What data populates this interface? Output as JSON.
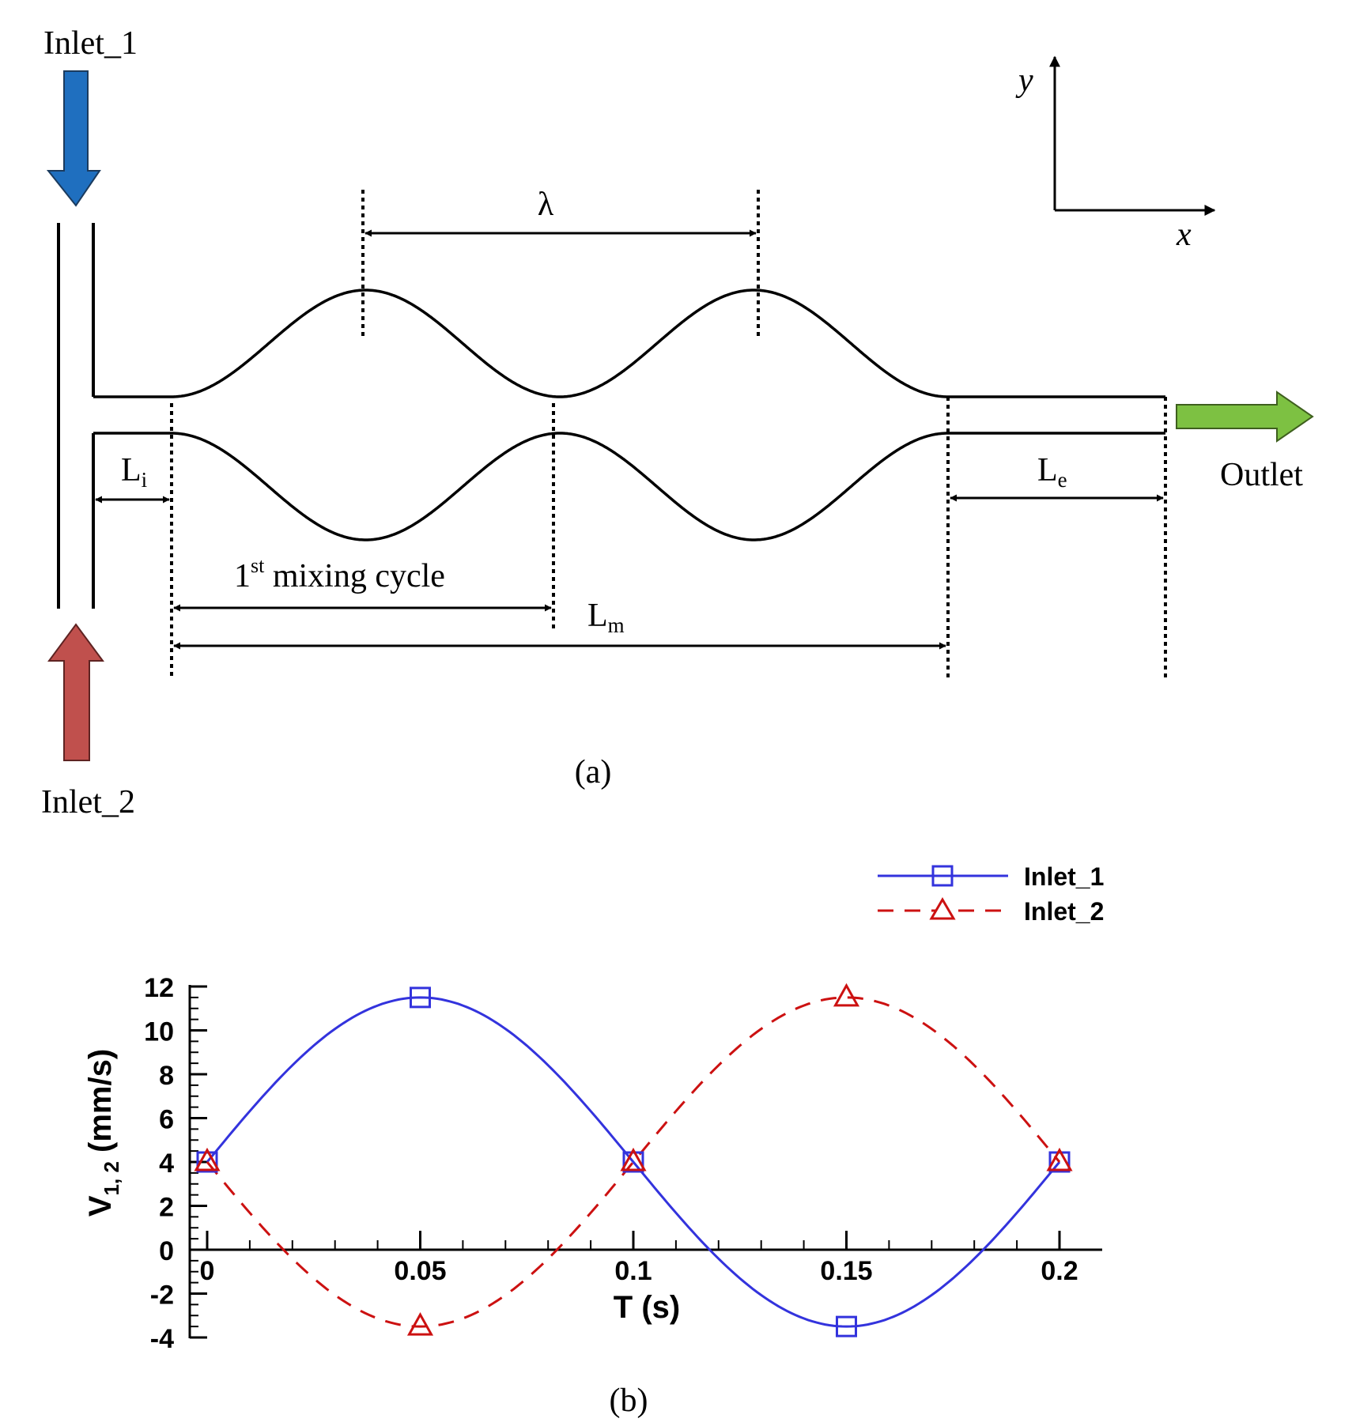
{
  "diagram": {
    "inlet_1": "Inlet_1",
    "inlet_2": "Inlet_2",
    "outlet": "Outlet",
    "lambda": "λ",
    "li_main": "L",
    "li_sub": "i",
    "le_main": "L",
    "le_sub": "e",
    "lm_main": "L",
    "lm_sub": "m",
    "cycle_num": "1",
    "cycle_sup": "st",
    "cycle_text": " mixing cycle",
    "axis_x": "x",
    "axis_y": "y",
    "caption_a": "(a)",
    "caption_b": "(b)",
    "colors": {
      "inlet_1_arrow": "#1f6fbf",
      "inlet_2_arrow": "#c0504d",
      "outlet_arrow": "#7dc142"
    }
  },
  "chart_data": {
    "type": "line",
    "xlabel": "T (s)",
    "ylabel_main": "V",
    "ylabel_sub": "1, 2",
    "ylabel_unit": " (mm/s)",
    "xlim": [
      0,
      0.2
    ],
    "ylim": [
      -4,
      12
    ],
    "x_ticks": [
      0,
      0.05,
      0.1,
      0.15,
      0.2
    ],
    "x_tick_labels": [
      "0",
      "0.05",
      "0.1",
      "0.15",
      "0.2"
    ],
    "y_ticks": [
      -4,
      -2,
      0,
      2,
      4,
      6,
      8,
      10,
      12
    ],
    "y_tick_labels": [
      "-4",
      "-2",
      "0",
      "2",
      "4",
      "6",
      "8",
      "10",
      "12"
    ],
    "legend_position": "top-right",
    "series": [
      {
        "name": "Inlet_1",
        "color": "#3333dd",
        "style": "solid",
        "marker": "square",
        "x": [
          0,
          0.05,
          0.1,
          0.15,
          0.2
        ],
        "y": [
          4,
          11.5,
          4,
          -3.5,
          4
        ]
      },
      {
        "name": "Inlet_2",
        "color": "#cc1111",
        "style": "dashed",
        "marker": "triangle",
        "x": [
          0,
          0.05,
          0.1,
          0.15,
          0.2
        ],
        "y": [
          4,
          -3.5,
          4,
          11.5,
          4
        ]
      }
    ]
  }
}
